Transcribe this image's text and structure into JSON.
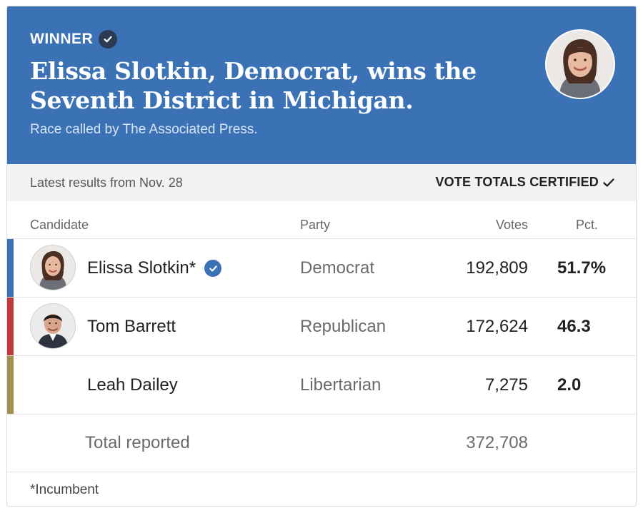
{
  "banner": {
    "winner_label": "WINNER",
    "headline": "Elissa Slotkin, Democrat, wins the Seventh District in Michigan.",
    "byline": "Race called by The Associated Press.",
    "background_color": "#3b72b5"
  },
  "status": {
    "latest": "Latest results from Nov. 28",
    "certified": "VOTE TOTALS CERTIFIED"
  },
  "columns": {
    "candidate": "Candidate",
    "party": "Party",
    "votes": "Votes",
    "pct": "Pct."
  },
  "candidates": [
    {
      "name": "Elissa Slotkin*",
      "party": "Democrat",
      "votes": "192,809",
      "pct": "51.7%",
      "winner": true,
      "party_color": "#3b72b5"
    },
    {
      "name": "Tom Barrett",
      "party": "Republican",
      "votes": "172,624",
      "pct": "46.3",
      "winner": false,
      "party_color": "#c0393b"
    },
    {
      "name": "Leah Dailey",
      "party": "Libertarian",
      "votes": "7,275",
      "pct": "2.0",
      "winner": false,
      "party_color": "#a38f4e"
    }
  ],
  "total": {
    "label": "Total reported",
    "votes": "372,708"
  },
  "footnote": "*Incumbent",
  "icons": {
    "winner": "check-circle-icon",
    "certified": "checkmark-icon"
  }
}
